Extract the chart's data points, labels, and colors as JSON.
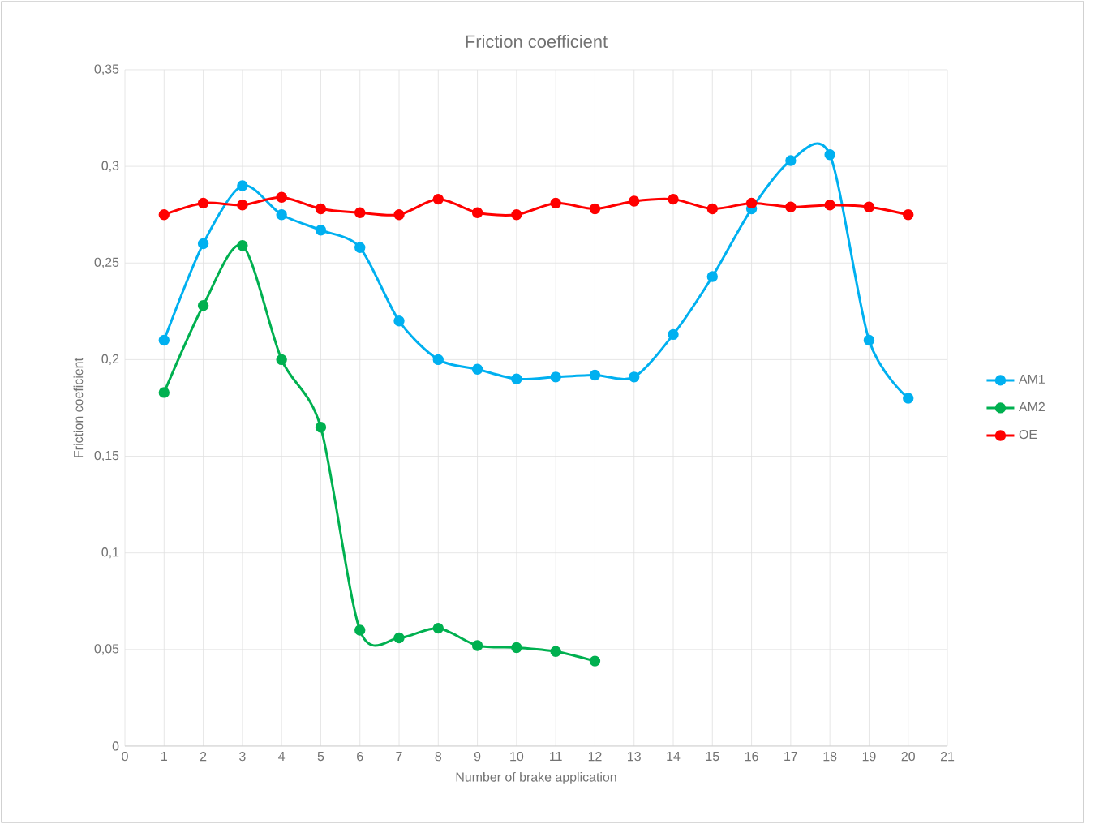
{
  "chart_data": {
    "type": "line",
    "title": "Friction coefficient",
    "xlabel": "Number of brake application",
    "ylabel": "Friction coeficient",
    "x": [
      1,
      2,
      3,
      4,
      5,
      6,
      7,
      8,
      9,
      10,
      11,
      12,
      13,
      14,
      15,
      16,
      17,
      18,
      19,
      20
    ],
    "series": [
      {
        "name": "AM1",
        "color": "#00b0f0",
        "values": [
          0.21,
          0.26,
          0.29,
          0.275,
          0.267,
          0.258,
          0.22,
          0.2,
          0.195,
          0.19,
          0.191,
          0.192,
          0.191,
          0.213,
          0.243,
          0.278,
          0.303,
          0.306,
          0.21,
          0.18
        ]
      },
      {
        "name": "AM2",
        "color": "#00b050",
        "values": [
          0.183,
          0.228,
          0.259,
          0.2,
          0.165,
          0.06,
          0.056,
          0.061,
          0.052,
          0.051,
          0.049,
          0.044,
          null,
          null,
          null,
          null,
          null,
          null,
          null,
          null
        ]
      },
      {
        "name": "OE",
        "color": "#ff0000",
        "values": [
          0.275,
          0.281,
          0.28,
          0.284,
          0.278,
          0.276,
          0.275,
          0.283,
          0.276,
          0.275,
          0.281,
          0.278,
          0.282,
          0.283,
          0.278,
          0.281,
          0.279,
          0.28,
          0.279,
          0.275
        ]
      }
    ],
    "xlim": [
      0,
      21
    ],
    "xticks": [
      0,
      1,
      2,
      3,
      4,
      5,
      6,
      7,
      8,
      9,
      10,
      11,
      12,
      13,
      14,
      15,
      16,
      17,
      18,
      19,
      20,
      21
    ],
    "ylim": [
      0,
      0.35
    ],
    "yticks": [
      0,
      {
        "value": 0.05,
        "label": "0,05"
      },
      {
        "value": 0.1,
        "label": "0,1"
      },
      {
        "value": 0.15,
        "label": "0,15"
      },
      {
        "value": 0.2,
        "label": "0,2"
      },
      {
        "value": 0.25,
        "label": "0,25"
      },
      {
        "value": 0.3,
        "label": "0,3"
      },
      {
        "value": 0.35,
        "label": "0,35"
      }
    ],
    "grid": true,
    "legend": "right",
    "marker": "circle",
    "line_style": "solid"
  }
}
